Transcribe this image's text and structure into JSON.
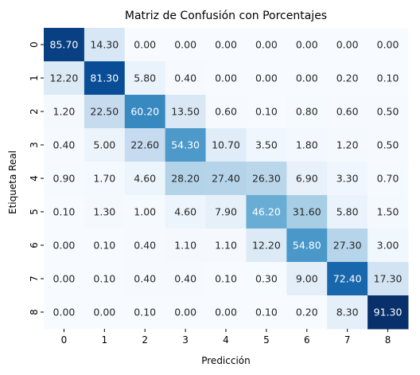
{
  "chart_data": {
    "type": "heatmap",
    "title": "Matriz de Confusión con Porcentajes",
    "xlabel": "Predicción",
    "ylabel": "Etiqueta Real",
    "x_categories": [
      "0",
      "1",
      "2",
      "3",
      "4",
      "5",
      "6",
      "7",
      "8"
    ],
    "y_categories": [
      "0",
      "1",
      "2",
      "3",
      "4",
      "5",
      "6",
      "7",
      "8"
    ],
    "values": [
      [
        85.7,
        14.3,
        0.0,
        0.0,
        0.0,
        0.0,
        0.0,
        0.0,
        0.0
      ],
      [
        12.2,
        81.3,
        5.8,
        0.4,
        0.0,
        0.0,
        0.0,
        0.2,
        0.1
      ],
      [
        1.2,
        22.5,
        60.2,
        13.5,
        0.6,
        0.1,
        0.8,
        0.6,
        0.5
      ],
      [
        0.4,
        5.0,
        22.6,
        54.3,
        10.7,
        3.5,
        1.8,
        1.2,
        0.5
      ],
      [
        0.9,
        1.7,
        4.6,
        28.2,
        27.4,
        26.3,
        6.9,
        3.3,
        0.7
      ],
      [
        0.1,
        1.3,
        1.0,
        4.6,
        7.9,
        46.2,
        31.6,
        5.8,
        1.5
      ],
      [
        0.0,
        0.1,
        0.4,
        1.1,
        1.1,
        12.2,
        54.8,
        27.3,
        3.0
      ],
      [
        0.0,
        0.1,
        0.4,
        0.4,
        0.1,
        0.3,
        9.0,
        72.4,
        17.3
      ],
      [
        0.0,
        0.0,
        0.1,
        0.0,
        0.0,
        0.1,
        0.2,
        8.3,
        91.3
      ]
    ],
    "value_format_decimals": 2,
    "colormap": "Blues",
    "colorbar": false,
    "grid": false
  }
}
